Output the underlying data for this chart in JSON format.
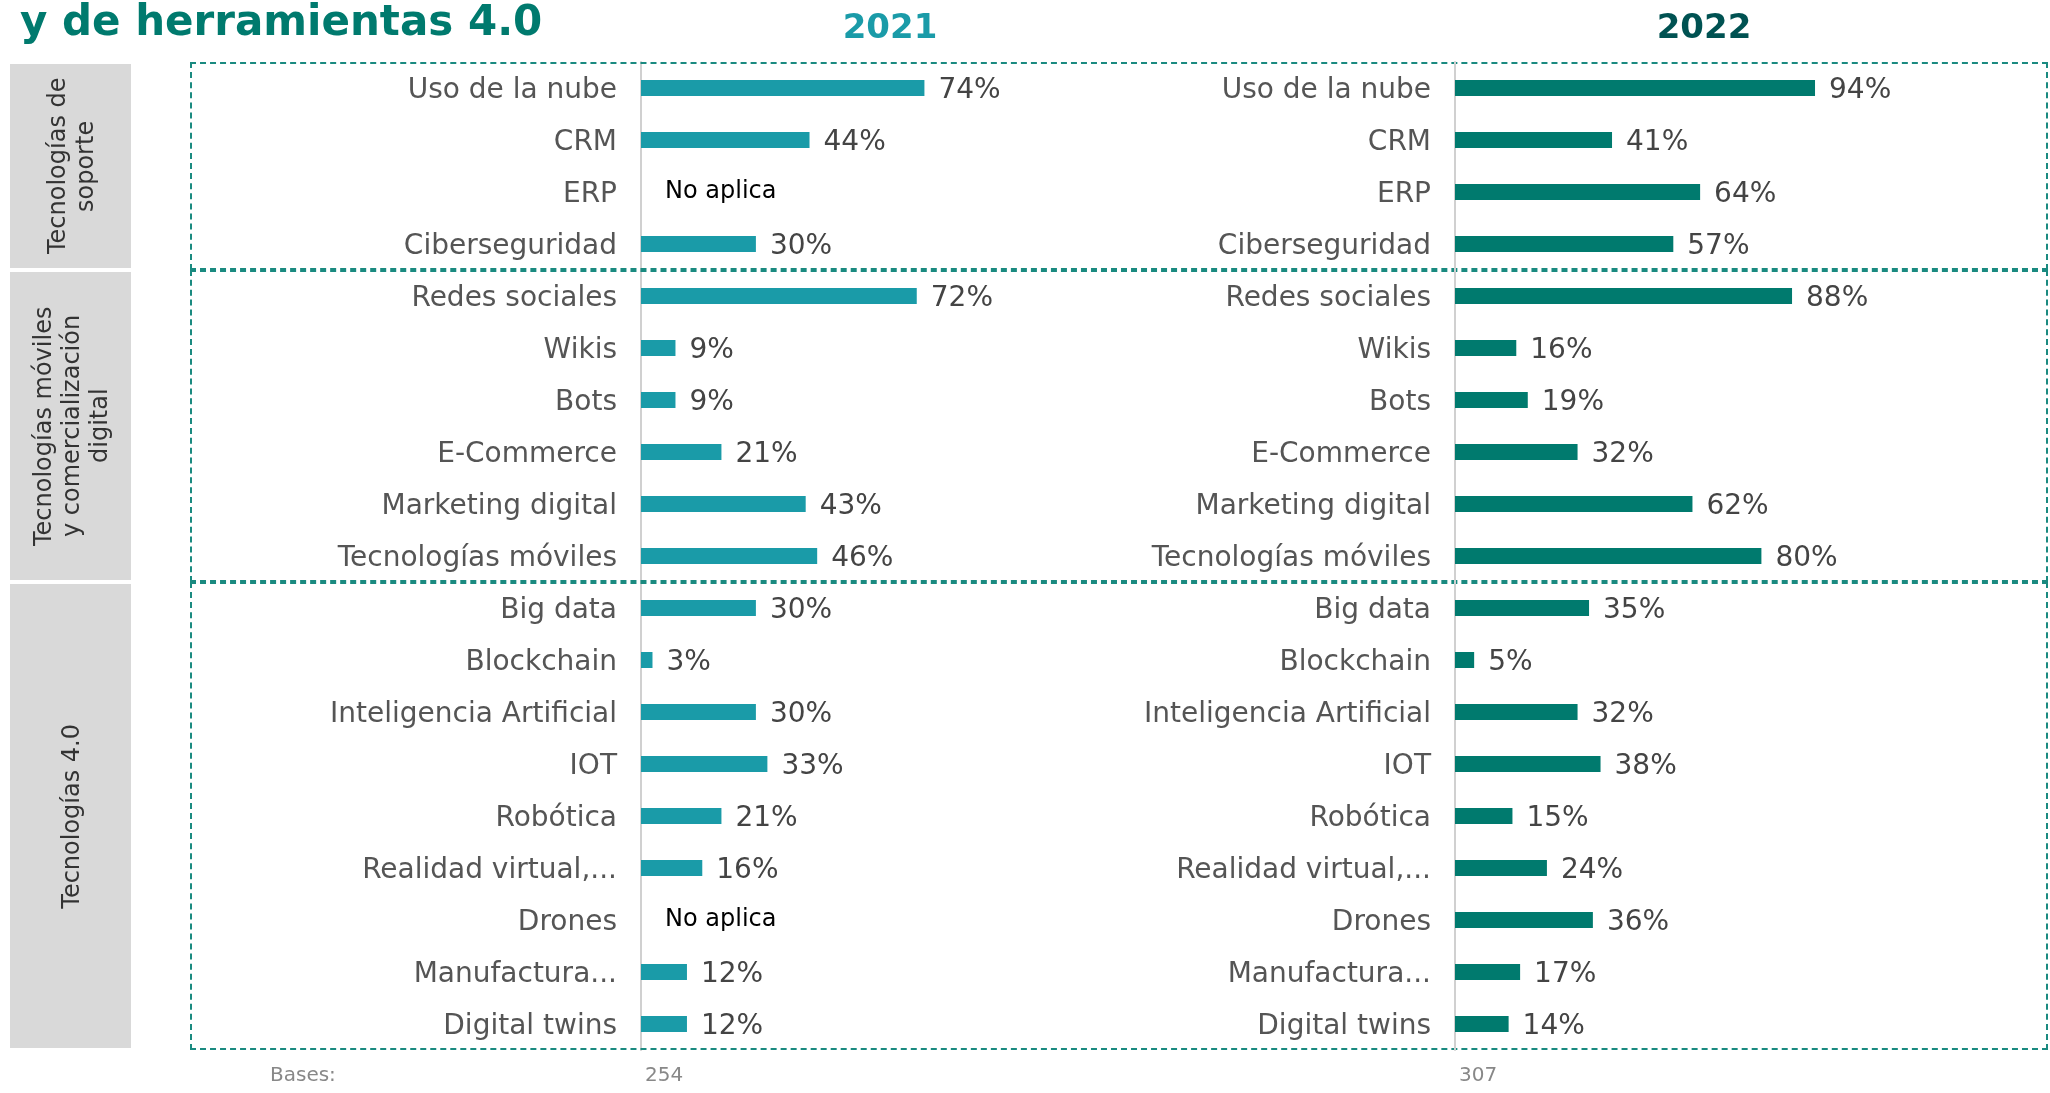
{
  "chart_data": [
    {
      "type": "bar",
      "orientation": "horizontal",
      "title": "2021",
      "tick_labels": "y",
      "categories": [
        "Uso de la nube",
        "CRM",
        "ERP",
        "Ciberseguridad",
        "Redes sociales",
        "Wikis",
        "Bots",
        "E-Commerce",
        "Marketing digital",
        "Tecnologías móviles",
        "Big data",
        "Blockchain",
        "Inteligencia Artificial",
        "IOT",
        "Robótica",
        "Realidad virtual,...",
        "Drones",
        "Manufactura...",
        "Digital twins"
      ],
      "series": [
        {
          "color": "#1a9ba8",
          "values": [
            74,
            44,
            null,
            30,
            72,
            9,
            9,
            21,
            43,
            46,
            30,
            3,
            30,
            33,
            21,
            16,
            null,
            12,
            12
          ],
          "value_labels": [
            "74%",
            "44%",
            "No aplica",
            "30%",
            "72%",
            "9%",
            "9%",
            "21%",
            "43%",
            "46%",
            "30%",
            "3%",
            "30%",
            "33%",
            "21%",
            "16%",
            "No aplica",
            "12%",
            "12%"
          ]
        }
      ],
      "annotations": [
        "y de herramientas 4.0",
        "Tecnologías de soporte",
        "Tecnologías móviles y comercialización digital",
        "Tecnologías 4.0",
        "Bases:",
        "254"
      ]
    },
    {
      "type": "bar",
      "orientation": "horizontal",
      "title": "2022",
      "tick_labels": "y",
      "categories": [
        "Uso de la nube",
        "CRM",
        "ERP",
        "Ciberseguridad",
        "Redes sociales",
        "Wikis",
        "Bots",
        "E-Commerce",
        "Marketing digital",
        "Tecnologías móviles",
        "Big data",
        "Blockchain",
        "Inteligencia Artificial",
        "IOT",
        "Robótica",
        "Realidad virtual,...",
        "Drones",
        "Manufactura...",
        "Digital twins"
      ],
      "series": [
        {
          "color": "#007a6e",
          "values": [
            94,
            41,
            64,
            57,
            88,
            16,
            19,
            32,
            62,
            80,
            35,
            5,
            32,
            38,
            15,
            24,
            36,
            17,
            14
          ],
          "value_labels": [
            "94%",
            "41%",
            "64%",
            "57%",
            "88%",
            "16%",
            "19%",
            "32%",
            "62%",
            "80%",
            "35%",
            "5%",
            "32%",
            "38%",
            "15%",
            "24%",
            "36%",
            "17%",
            "14%"
          ]
        }
      ],
      "annotations": [
        "307"
      ]
    }
  ]
}
